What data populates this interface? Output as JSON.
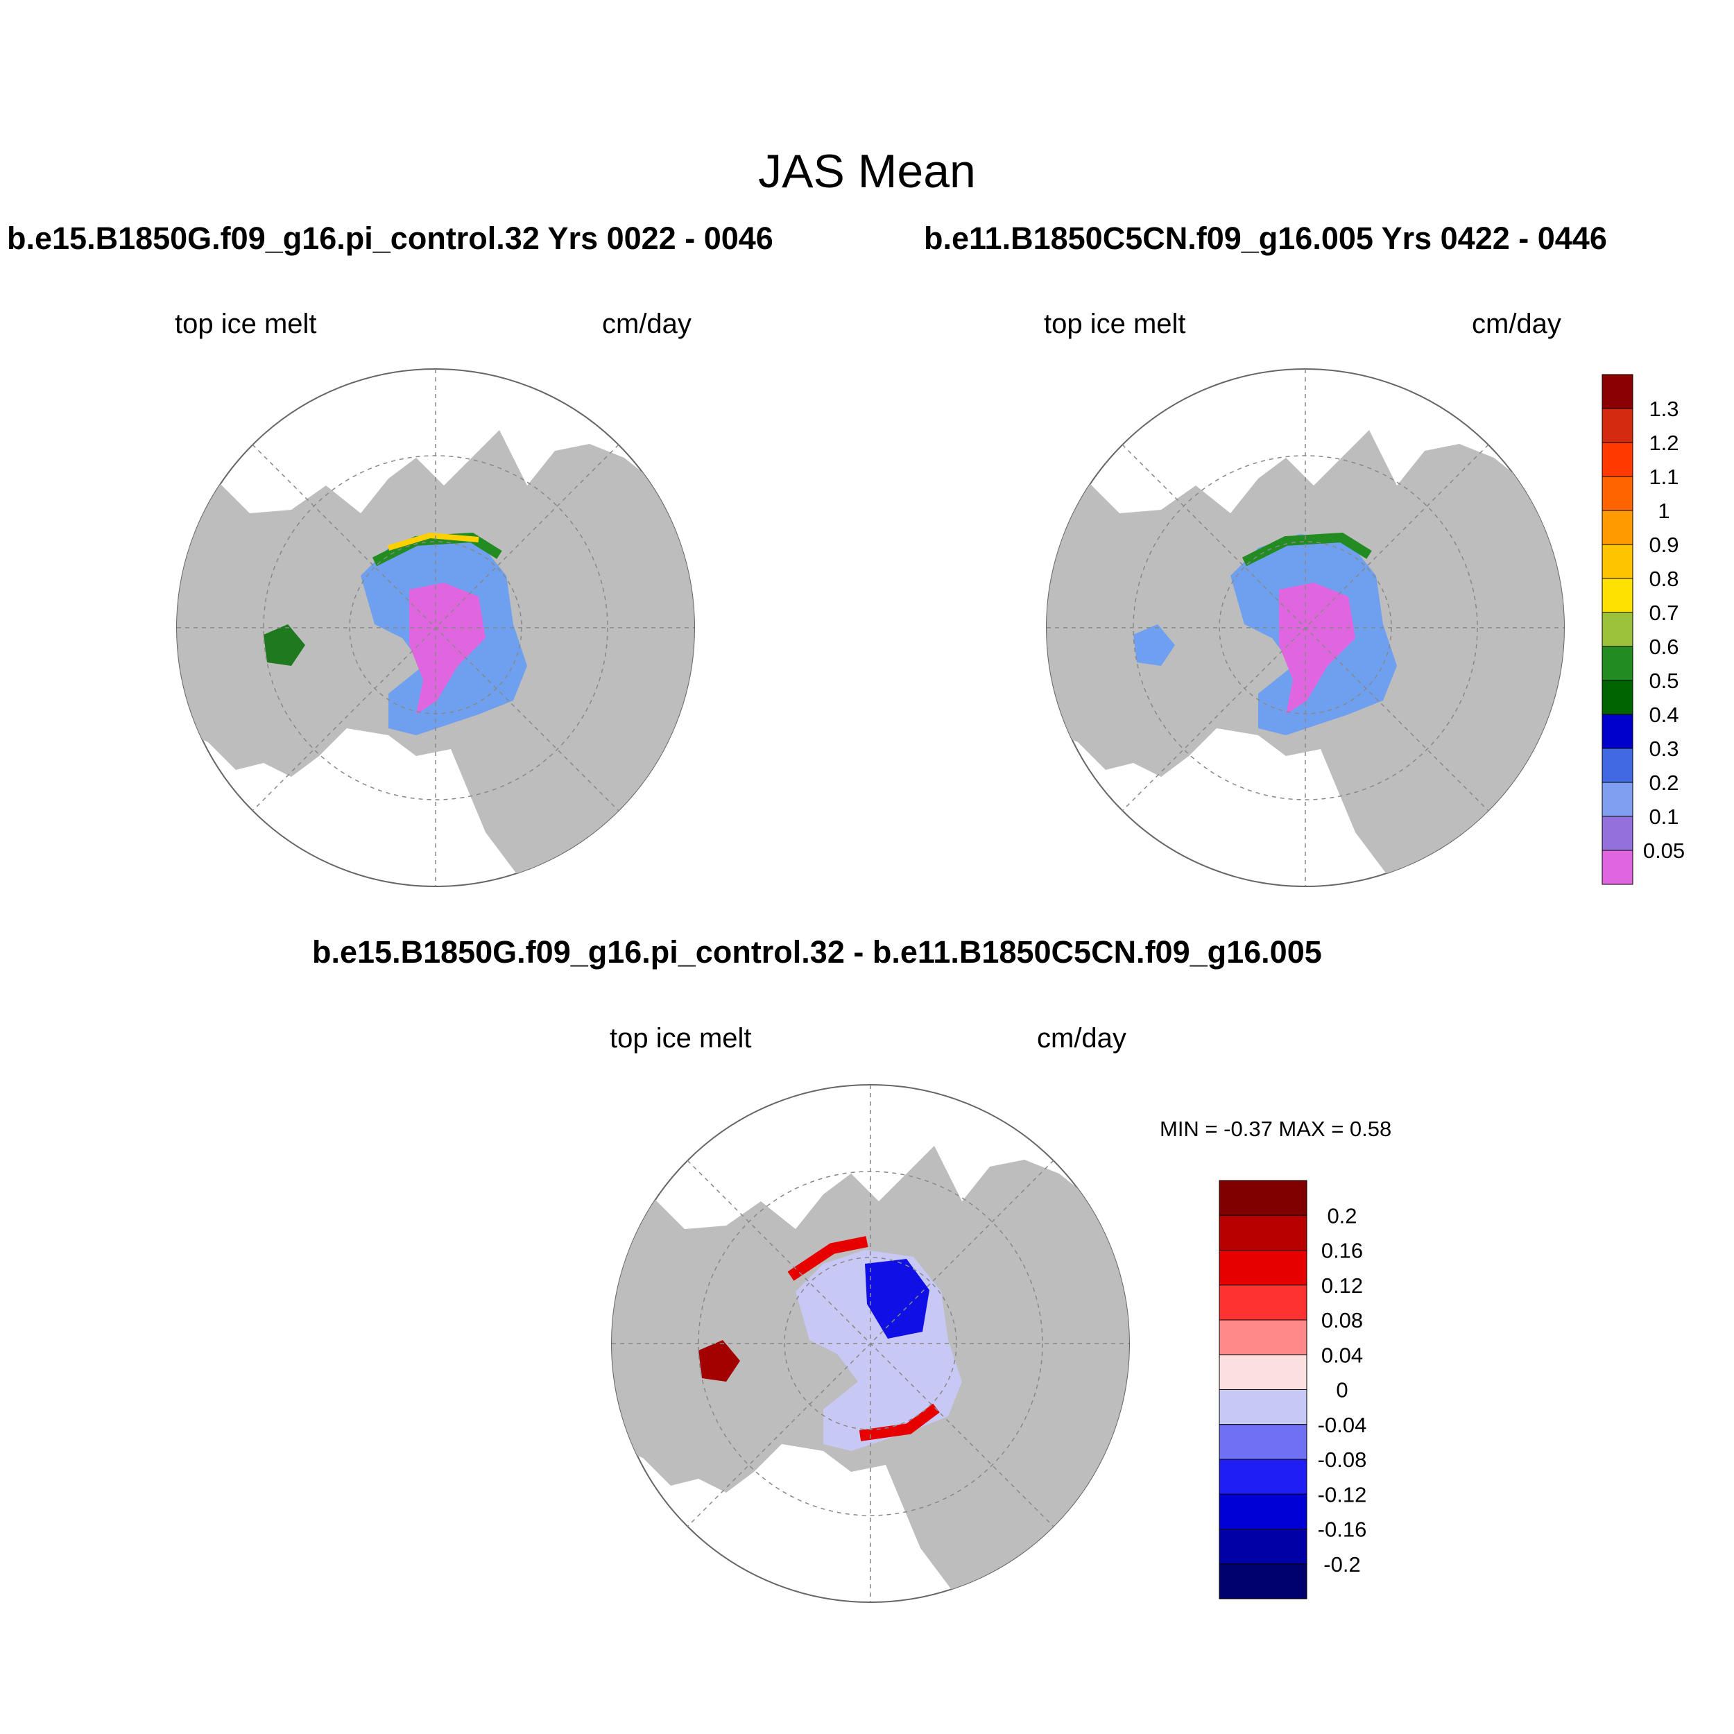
{
  "figure": {
    "title": "JAS Mean"
  },
  "panels": [
    {
      "id": "case",
      "title": "b.e15.B1850G.f09_g16.pi_control.32  Yrs 0022 - 0046",
      "left_label": "top ice melt",
      "right_label": "cm/day"
    },
    {
      "id": "control",
      "title": "b.e11.B1850C5CN.f09_g16.005  Yrs 0422 - 0446",
      "left_label": "top ice melt",
      "right_label": "cm/day"
    },
    {
      "id": "difference",
      "title": "b.e15.B1850G.f09_g16.pi_control.32 - b.e11.B1850C5CN.f09_g16.005",
      "left_label": "top ice melt",
      "right_label": "cm/day",
      "minmax": "MIN =  -0.37 MAX =   0.58"
    }
  ],
  "colorbar_main": {
    "labels": [
      "1.3",
      "1.2",
      "1.1",
      "1",
      "0.9",
      "0.8",
      "0.7",
      "0.6",
      "0.5",
      "0.4",
      "0.3",
      "0.2",
      "0.1",
      "0.05"
    ],
    "colors": [
      "#8b0000",
      "#d42a0f",
      "#ff3a00",
      "#ff6400",
      "#ff9a00",
      "#ffc400",
      "#ffe100",
      "#9bc23a",
      "#228b22",
      "#006400",
      "#0000cd",
      "#4169e1",
      "#7f9ff0",
      "#9370db",
      "#e066e0"
    ]
  },
  "colorbar_diff": {
    "labels": [
      "0.2",
      "0.16",
      "0.12",
      "0.08",
      "0.04",
      "0",
      "-0.04",
      "-0.08",
      "-0.12",
      "-0.16",
      "-0.2"
    ],
    "colors": [
      "#800000",
      "#b80000",
      "#e60000",
      "#ff3232",
      "#ff8888",
      "#fce0e0",
      "#c8c8f5",
      "#7070f5",
      "#1e1ef5",
      "#0000d6",
      "#0000a6",
      "#00006e"
    ]
  },
  "colors": {
    "land": "#bdbdbd",
    "ocean": "#ffffff",
    "grid": "#888888"
  }
}
